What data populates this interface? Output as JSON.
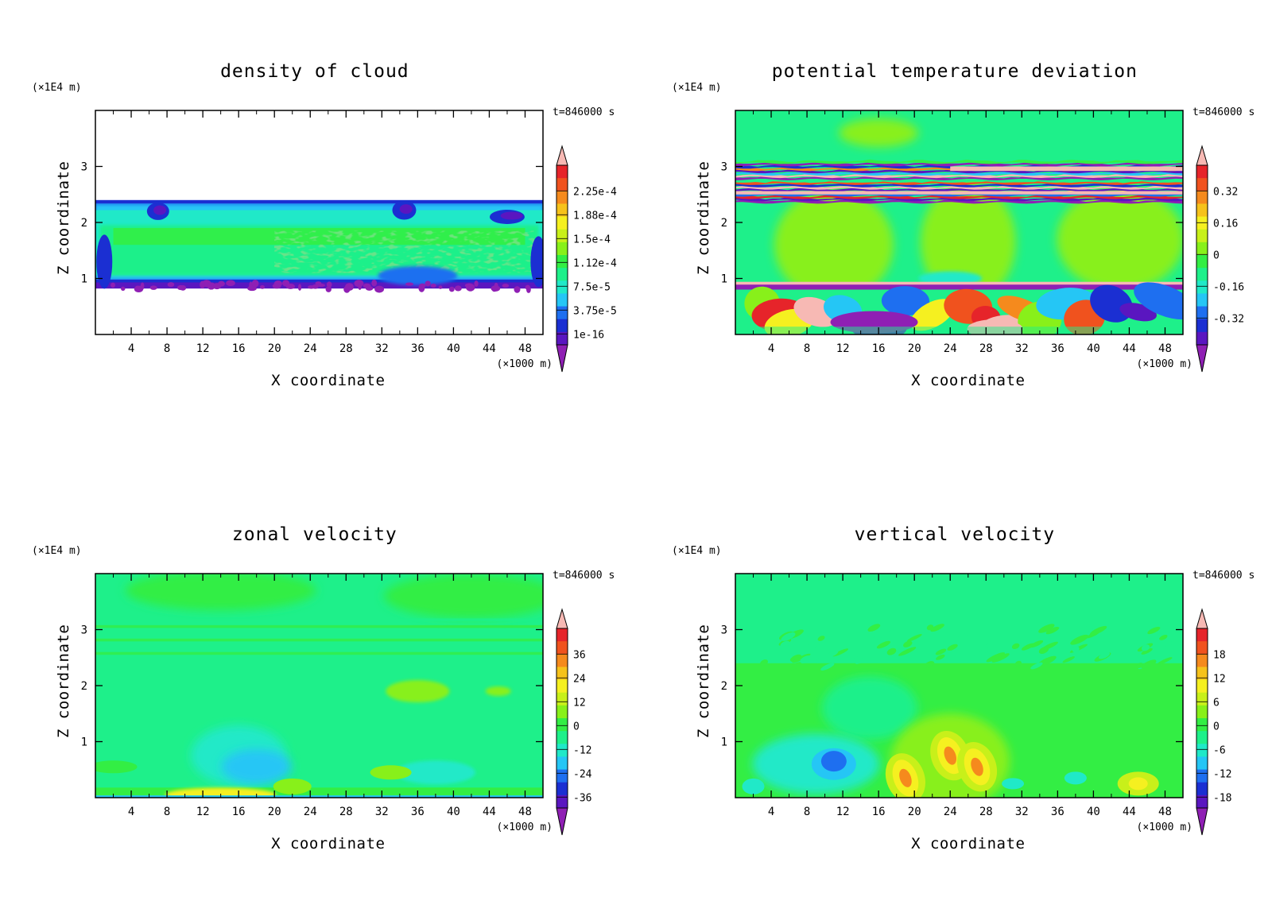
{
  "colors": {
    "scale": [
      "#8f1fb4",
      "#5a16c0",
      "#1b2fd2",
      "#1e6ff0",
      "#25c6f5",
      "#20e9c8",
      "#1ef08a",
      "#33ee44",
      "#88f01a",
      "#c8f01a",
      "#f5f020",
      "#f6c21b",
      "#f58a1d",
      "#f0521e",
      "#e6242a",
      "#f7b9b4"
    ]
  },
  "chart_data": [
    {
      "type": "heatmap",
      "title": "density of cloud",
      "xlabel": "X coordinate",
      "ylabel": "Z coordinate",
      "x_unit": "(×1000 m)",
      "y_unit": "(×1E4 m)",
      "time_label": "t=846000 s",
      "xlim": [
        0,
        50
      ],
      "ylim": [
        0,
        4
      ],
      "x_ticks": [
        "4",
        "8",
        "12",
        "16",
        "20",
        "24",
        "28",
        "32",
        "36",
        "40",
        "44",
        "48"
      ],
      "y_ticks": [
        "1",
        "2",
        "3"
      ],
      "colorbar_labels": [
        "2.25e-4",
        "1.88e-4",
        "1.5e-4",
        "1.12e-4",
        "7.5e-5",
        "3.75e-5",
        "1e-16"
      ],
      "legend": "colorbar right",
      "grid": false,
      "field": {
        "cloud_layer_z": [
          0.85,
          2.38
        ],
        "cloud_layer_x": [
          0,
          50
        ],
        "core_z": [
          1.05,
          1.95
        ],
        "core_level": "1.12e-4 to 1.5e-4",
        "base_level": "1e-16 to 3.75e-5",
        "top_level": "1e-16 to 3.75e-5"
      }
    },
    {
      "type": "heatmap",
      "title": "potential temperature deviation",
      "xlabel": "X coordinate",
      "ylabel": "Z coordinate",
      "x_unit": "(×1000 m)",
      "y_unit": "(×1E4 m)",
      "time_label": "t=846000 s",
      "xlim": [
        0,
        50
      ],
      "ylim": [
        0,
        4
      ],
      "x_ticks": [
        "4",
        "8",
        "12",
        "16",
        "20",
        "24",
        "28",
        "32",
        "36",
        "40",
        "44",
        "48"
      ],
      "y_ticks": [
        "1",
        "2",
        "3"
      ],
      "colorbar_labels": [
        "0.32",
        "0.16",
        "0",
        "-0.16",
        "-0.32"
      ],
      "legend": "colorbar right",
      "grid": false,
      "field": {
        "background_level": "-0.08 to 0",
        "warm_patches_level": "0 to 0.08",
        "banded_layer_z": [
          2.35,
          3.1
        ],
        "inversion_z": 0.8,
        "turbulent_lower_z": [
          0,
          0.9
        ]
      }
    },
    {
      "type": "heatmap",
      "title": "zonal velocity",
      "xlabel": "X coordinate",
      "ylabel": "Z coordinate",
      "x_unit": "(×1000 m)",
      "y_unit": "(×1E4 m)",
      "time_label": "t=846000 s",
      "xlim": [
        0,
        50
      ],
      "ylim": [
        0,
        4
      ],
      "x_ticks": [
        "4",
        "8",
        "12",
        "16",
        "20",
        "24",
        "28",
        "32",
        "36",
        "40",
        "44",
        "48"
      ],
      "y_ticks": [
        "1",
        "2",
        "3"
      ],
      "colorbar_labels": [
        "36",
        "24",
        "12",
        "0",
        "-12",
        "-24",
        "-36"
      ],
      "legend": "colorbar right",
      "grid": false,
      "field": {
        "background_level": "-6 to 0",
        "upper_level": "0 to 6",
        "weak_negative_z": [
          0.1,
          1.2
        ],
        "positive_near_surface_x": [
          8,
          20
        ]
      }
    },
    {
      "type": "heatmap",
      "title": "vertical velocity",
      "xlabel": "X coordinate",
      "ylabel": "Z coordinate",
      "x_unit": "(×1000 m)",
      "y_unit": "(×1E4 m)",
      "time_label": "t=846000 s",
      "xlim": [
        0,
        50
      ],
      "ylim": [
        0,
        4
      ],
      "x_ticks": [
        "4",
        "8",
        "12",
        "16",
        "20",
        "24",
        "28",
        "32",
        "36",
        "40",
        "44",
        "48"
      ],
      "y_ticks": [
        "1",
        "2",
        "3"
      ],
      "colorbar_labels": [
        "18",
        "12",
        "6",
        "0",
        "-6",
        "-12",
        "-18"
      ],
      "legend": "colorbar right",
      "grid": false,
      "field": {
        "background_level": "-3 to 0",
        "updraft_cores": [
          [
            19,
            0.35
          ],
          [
            24,
            0.75
          ],
          [
            27,
            0.55
          ]
        ],
        "downdraft_core": [
          11,
          0.6
        ],
        "wavy_layer_z": [
          2.3,
          3.05
        ]
      }
    }
  ]
}
